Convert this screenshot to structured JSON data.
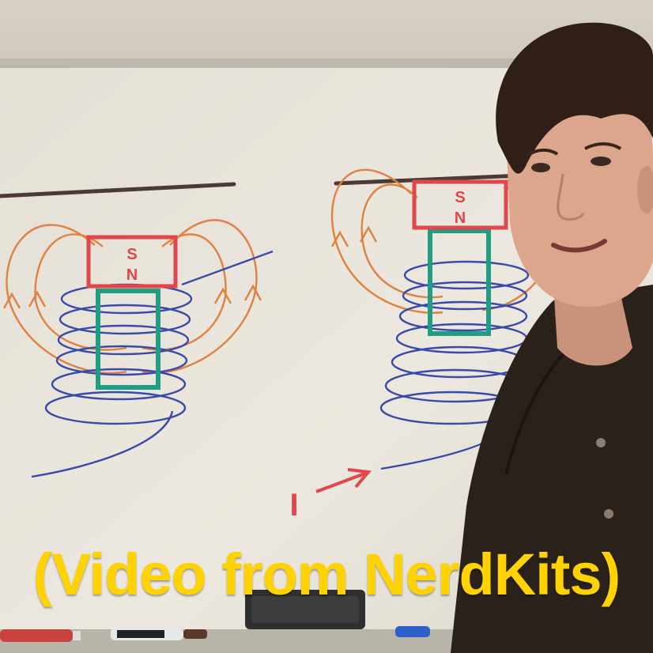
{
  "caption": "(Video from NerdKits)",
  "diagram_left": {
    "magnet_label_top": "S",
    "magnet_label_bottom": "N"
  },
  "diagram_right": {
    "magnet_label_top": "S",
    "magnet_label_bottom": "N",
    "current_label": "I"
  },
  "colors": {
    "whiteboard": "#e9e5dc",
    "magnet": "#e0464a",
    "core": "#1f9e84",
    "coil": "#3a4aa8",
    "field_lines": "#e0813f",
    "caption": "#ffd200"
  }
}
